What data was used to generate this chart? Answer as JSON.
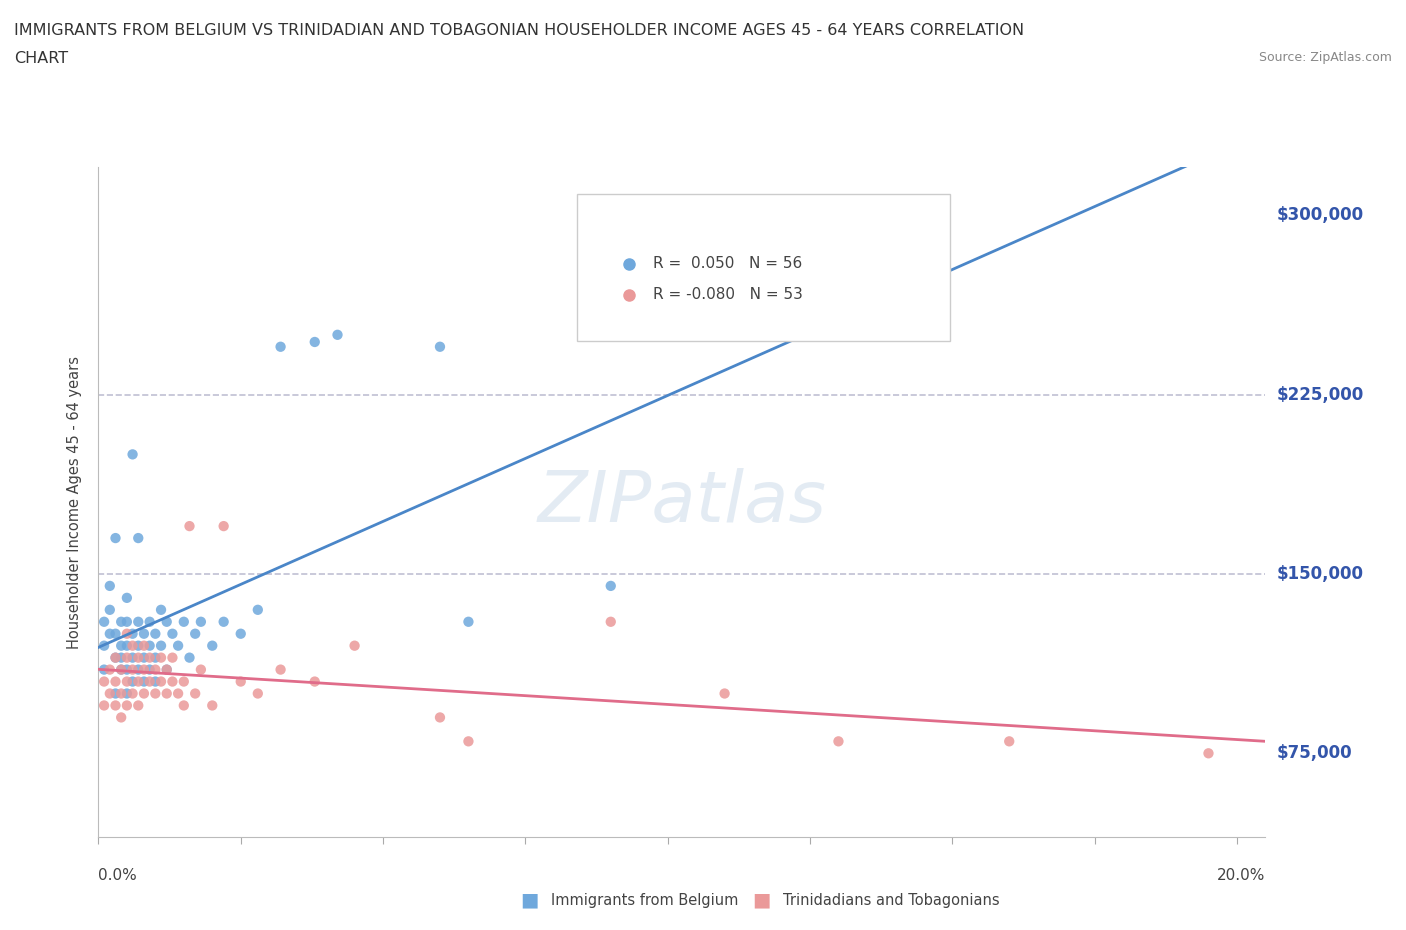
{
  "title_line1": "IMMIGRANTS FROM BELGIUM VS TRINIDADIAN AND TOBAGONIAN HOUSEHOLDER INCOME AGES 45 - 64 YEARS CORRELATION",
  "title_line2": "CHART",
  "source": "Source: ZipAtlas.com",
  "ylabel": "Householder Income Ages 45 - 64 years",
  "xmin": 0.0,
  "xmax": 0.205,
  "ymin": 40000,
  "ymax": 320000,
  "r_belgium": 0.05,
  "n_belgium": 56,
  "r_trinidad": -0.08,
  "n_trinidad": 53,
  "color_belgium": "#6fa8dc",
  "color_trinidad": "#ea9999",
  "line_color_belgium": "#4a86c8",
  "line_color_trinidad": "#e06c8a",
  "dashed_line_color": "#b0b0c8",
  "watermark_color": "#c8d8e8",
  "belgium_x": [
    0.001,
    0.001,
    0.001,
    0.002,
    0.002,
    0.002,
    0.003,
    0.003,
    0.003,
    0.003,
    0.004,
    0.004,
    0.004,
    0.004,
    0.005,
    0.005,
    0.005,
    0.005,
    0.005,
    0.006,
    0.006,
    0.006,
    0.006,
    0.007,
    0.007,
    0.007,
    0.007,
    0.008,
    0.008,
    0.008,
    0.009,
    0.009,
    0.009,
    0.01,
    0.01,
    0.01,
    0.011,
    0.011,
    0.012,
    0.012,
    0.013,
    0.014,
    0.015,
    0.016,
    0.017,
    0.018,
    0.02,
    0.022,
    0.025,
    0.028,
    0.032,
    0.038,
    0.042,
    0.06,
    0.065,
    0.09
  ],
  "belgium_y": [
    120000,
    130000,
    110000,
    125000,
    135000,
    145000,
    115000,
    125000,
    100000,
    165000,
    110000,
    120000,
    130000,
    115000,
    100000,
    110000,
    120000,
    130000,
    140000,
    105000,
    115000,
    125000,
    200000,
    110000,
    120000,
    130000,
    165000,
    105000,
    115000,
    125000,
    110000,
    120000,
    130000,
    105000,
    115000,
    125000,
    120000,
    135000,
    110000,
    130000,
    125000,
    120000,
    130000,
    115000,
    125000,
    130000,
    120000,
    130000,
    125000,
    135000,
    245000,
    247000,
    250000,
    245000,
    130000,
    145000
  ],
  "trinidad_x": [
    0.001,
    0.001,
    0.002,
    0.002,
    0.003,
    0.003,
    0.003,
    0.004,
    0.004,
    0.004,
    0.005,
    0.005,
    0.005,
    0.005,
    0.006,
    0.006,
    0.006,
    0.007,
    0.007,
    0.007,
    0.008,
    0.008,
    0.008,
    0.009,
    0.009,
    0.01,
    0.01,
    0.011,
    0.011,
    0.012,
    0.012,
    0.013,
    0.013,
    0.014,
    0.015,
    0.015,
    0.016,
    0.017,
    0.018,
    0.02,
    0.022,
    0.025,
    0.028,
    0.032,
    0.038,
    0.045,
    0.06,
    0.065,
    0.09,
    0.11,
    0.13,
    0.16,
    0.195
  ],
  "trinidad_y": [
    105000,
    95000,
    100000,
    110000,
    95000,
    105000,
    115000,
    100000,
    110000,
    90000,
    95000,
    105000,
    115000,
    125000,
    100000,
    110000,
    120000,
    95000,
    105000,
    115000,
    100000,
    110000,
    120000,
    105000,
    115000,
    100000,
    110000,
    105000,
    115000,
    100000,
    110000,
    105000,
    115000,
    100000,
    95000,
    105000,
    170000,
    100000,
    110000,
    95000,
    170000,
    105000,
    100000,
    110000,
    105000,
    120000,
    90000,
    80000,
    130000,
    100000,
    80000,
    80000,
    75000
  ],
  "ytick_positions": [
    75000,
    150000,
    225000,
    300000
  ],
  "ytick_labels": [
    "$75,000",
    "$150,000",
    "$225,000",
    "$300,000"
  ],
  "xtick_positions": [
    0.0,
    0.025,
    0.05,
    0.075,
    0.1,
    0.125,
    0.15,
    0.175,
    0.2
  ],
  "hline_positions": [
    150000,
    225000
  ]
}
